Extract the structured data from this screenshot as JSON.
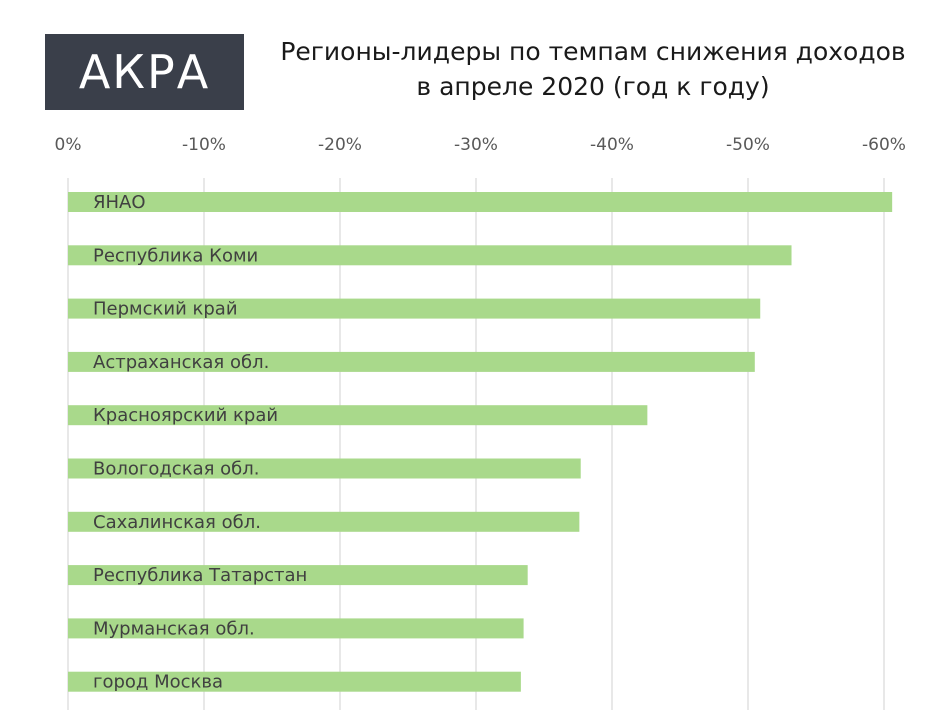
{
  "logo": {
    "text": "АКРА"
  },
  "header": {
    "title_line1": "Регионы-лидеры по темпам снижения доходов",
    "title_line2": "в апреле 2020 (год к году)"
  },
  "colors": {
    "bar": "#a9d98b",
    "grid": "#d9d9d9",
    "tick": "#595959",
    "label": "#404040"
  },
  "chart_data": {
    "type": "bar",
    "orientation": "horizontal",
    "title": "Регионы-лидеры по темпам снижения доходов в апреле 2020 (год к году)",
    "x_ticks": [
      "0%",
      "-10%",
      "-20%",
      "-30%",
      "-40%",
      "-50%",
      "-60%"
    ],
    "xlim": [
      0,
      -60
    ],
    "grid": true,
    "categories": [
      "ЯНАО",
      "Республика Коми",
      "Пермский край",
      "Астраханская обл.",
      "Красноярский край",
      "Вологодская обл.",
      "Сахалинская обл.",
      "Республика Татарстан",
      "Мурманская обл.",
      "город Москва"
    ],
    "values": [
      -60.6,
      -53.2,
      -50.9,
      -50.5,
      -42.6,
      -37.7,
      -37.6,
      -33.8,
      -33.5,
      -33.3
    ]
  }
}
